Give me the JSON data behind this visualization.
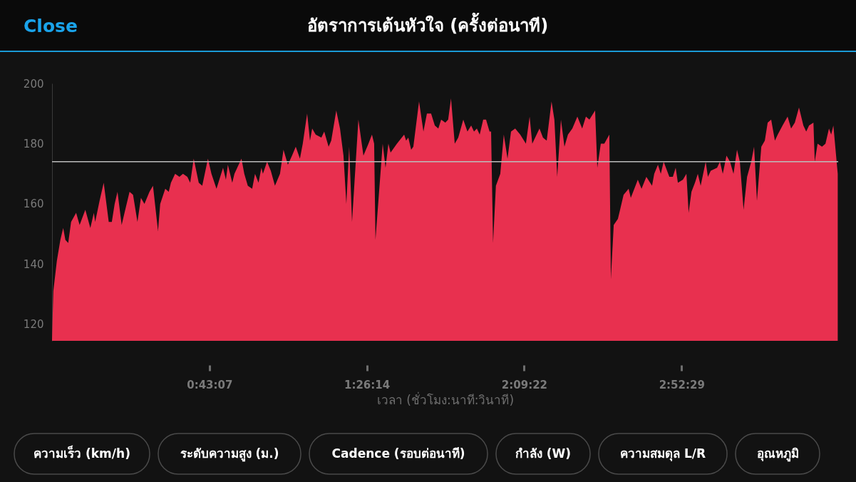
{
  "chart_data": {
    "type": "area",
    "title": "อัตราการเต้นหัวใจ (ครั้งต่อนาที)",
    "xlabel": "เวลา (ชั่วโมง:นาที:วินาที)",
    "annotations": [
      "Close",
      "ความเร็ว (km/h)",
      "ระดับความสูง (ม.)",
      "Cadence (รอบต่อนาที)",
      "กำลัง (W)",
      "ความสมดุล L/R",
      "อุณหภูมิ"
    ],
    "xlim": [
      0,
      3.59
    ],
    "xticks": [
      {
        "value": 0.71861,
        "label": "0:43:07"
      },
      {
        "value": 1.43722,
        "label": "1:26:14"
      },
      {
        "value": 2.15611,
        "label": "2:09:22"
      },
      {
        "value": 2.87472,
        "label": "2:52:29"
      }
    ],
    "ylim": [
      114.5,
      200
    ],
    "yticks": [
      120,
      140,
      160,
      180,
      200
    ],
    "ref_lines": [
      {
        "axis": "y",
        "value": 174,
        "color": "#bbbbbb"
      }
    ],
    "series": [
      {
        "color": "#e8304f",
        "x": [
          0,
          0.006,
          0.022,
          0.038,
          0.051,
          0.061,
          0.074,
          0.087,
          0.11,
          0.126,
          0.152,
          0.175,
          0.191,
          0.197,
          0.217,
          0.236,
          0.259,
          0.273,
          0.286,
          0.299,
          0.318,
          0.331,
          0.354,
          0.37,
          0.39,
          0.406,
          0.422,
          0.445,
          0.461,
          0.484,
          0.494,
          0.517,
          0.533,
          0.543,
          0.562,
          0.582,
          0.598,
          0.618,
          0.631,
          0.647,
          0.67,
          0.686,
          0.712,
          0.728,
          0.751,
          0.781,
          0.794,
          0.803,
          0.823,
          0.833,
          0.865,
          0.878,
          0.894,
          0.914,
          0.927,
          0.943,
          0.956,
          0.963,
          0.982,
          0.999,
          1.018,
          1.041,
          1.057,
          1.077,
          1.096,
          1.113,
          1.132,
          1.145,
          1.165,
          1.178,
          1.188,
          1.204,
          1.23,
          1.243,
          1.263,
          1.275,
          1.298,
          1.315,
          1.331,
          1.344,
          1.357,
          1.37,
          1.399,
          1.422,
          1.445,
          1.461,
          1.471,
          1.477,
          1.51,
          1.523,
          1.536,
          1.546,
          1.575,
          1.608,
          1.617,
          1.627,
          1.64,
          1.65,
          1.676,
          1.696,
          1.712,
          1.731,
          1.748,
          1.764,
          1.777,
          1.796,
          1.809,
          1.822,
          1.839,
          1.855,
          1.878,
          1.897,
          1.914,
          1.927,
          1.94,
          1.953,
          1.969,
          1.982,
          1.998,
          2.005,
          2.014,
          2.027,
          2.047,
          2.063,
          2.08,
          2.096,
          2.115,
          2.138,
          2.164,
          2.181,
          2.193,
          2.226,
          2.242,
          2.259,
          2.281,
          2.294,
          2.307,
          2.324,
          2.34,
          2.356,
          2.376,
          2.399,
          2.421,
          2.438,
          2.454,
          2.48,
          2.49,
          2.506,
          2.522,
          2.545,
          2.552,
          2.565,
          2.584,
          2.594,
          2.61,
          2.633,
          2.643,
          2.675,
          2.692,
          2.714,
          2.74,
          2.75,
          2.767,
          2.78,
          2.793,
          2.819,
          2.835,
          2.848,
          2.858,
          2.881,
          2.897,
          2.907,
          2.92,
          2.936,
          2.949,
          2.962,
          2.985,
          2.995,
          3.008,
          3.037,
          3.05,
          3.063,
          3.08,
          3.096,
          3.112,
          3.128,
          3.141,
          3.158,
          3.174,
          3.193,
          3.206,
          3.219,
          3.239,
          3.255,
          3.268,
          3.284,
          3.301,
          3.314,
          3.336,
          3.359,
          3.375,
          3.392,
          3.411,
          3.431,
          3.444,
          3.457,
          3.477,
          3.483,
          3.496,
          3.516,
          3.532,
          3.548,
          3.558,
          3.568,
          3.588
        ],
        "values": [
          115,
          131,
          141,
          148,
          152,
          148,
          147,
          154,
          157,
          153,
          158,
          152,
          157,
          154,
          161,
          167,
          154,
          154,
          160,
          164,
          153,
          157,
          164,
          163,
          154,
          162,
          160,
          164,
          166,
          151,
          160,
          165,
          164,
          167,
          170,
          169,
          170,
          169,
          167,
          175,
          167,
          166,
          175,
          170,
          165,
          172,
          168,
          173,
          167,
          170,
          175,
          170,
          166,
          165,
          170,
          167,
          172,
          170,
          174,
          171,
          166,
          170,
          178,
          173,
          176,
          179,
          175,
          180,
          190,
          181,
          185,
          183,
          182,
          184,
          179,
          181,
          191,
          185,
          176,
          160,
          179,
          154,
          188,
          176,
          180,
          183,
          180,
          148,
          180,
          172,
          180,
          177,
          180,
          183,
          181,
          182,
          178,
          179,
          194,
          184,
          190,
          190,
          186,
          185,
          188,
          187,
          188,
          195,
          180,
          182,
          188,
          184,
          186,
          184,
          185,
          183,
          188,
          188,
          184,
          184,
          147,
          166,
          170,
          183,
          175,
          184,
          185,
          183,
          180,
          189,
          180,
          185,
          182,
          181,
          194,
          188,
          169,
          188,
          179,
          183,
          185,
          189,
          185,
          189,
          188,
          191,
          172,
          180,
          180,
          183,
          135,
          153,
          155,
          158,
          163,
          165,
          162,
          168,
          165,
          169,
          166,
          170,
          173,
          170,
          174,
          169,
          169,
          172,
          167,
          168,
          170,
          157,
          164,
          167,
          170,
          166,
          174,
          169,
          171,
          172,
          174,
          170,
          176,
          174,
          170,
          178,
          174,
          158,
          169,
          174,
          179,
          161,
          179,
          181,
          187,
          188,
          181,
          183,
          186,
          189,
          185,
          187,
          192,
          186,
          184,
          186,
          187,
          174,
          180,
          179,
          180,
          185,
          183,
          186,
          170
        ]
      }
    ]
  }
}
